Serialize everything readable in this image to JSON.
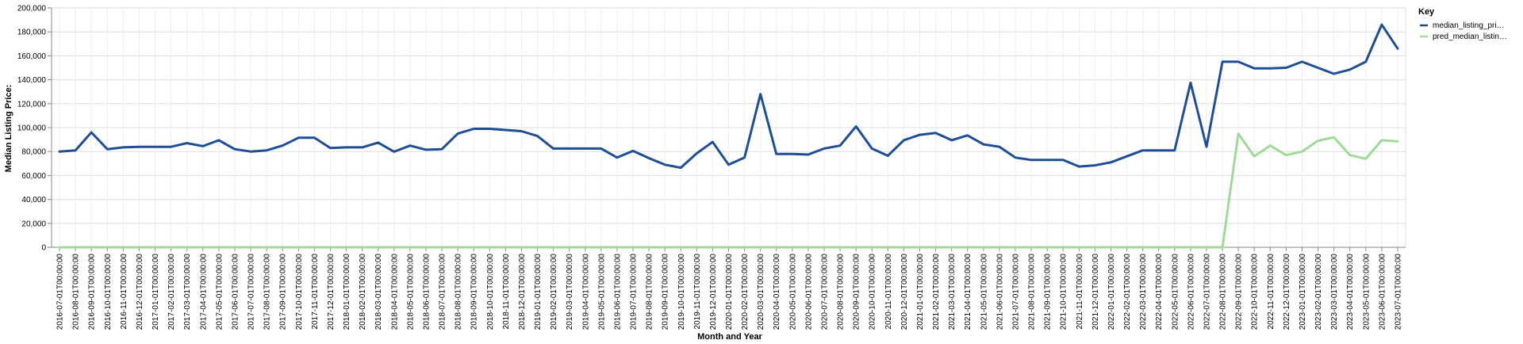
{
  "chart_data": {
    "type": "line",
    "xlabel": "Month and Year",
    "ylabel": "Median Listing Price:",
    "ylim": [
      0,
      200000
    ],
    "y_ticks": [
      "0",
      "20,000",
      "40,000",
      "60,000",
      "80,000",
      "100,000",
      "120,000",
      "140,000",
      "160,000",
      "180,000",
      "200,000"
    ],
    "grid": true,
    "legend": {
      "title": "Key",
      "placement": "top-right"
    },
    "x": [
      "2016-07-01T00:00:00",
      "2016-08-01T00:00:00",
      "2016-09-01T00:00:00",
      "2016-10-01T00:00:00",
      "2016-11-01T00:00:00",
      "2016-12-01T00:00:00",
      "2017-01-01T00:00:00",
      "2017-02-01T00:00:00",
      "2017-03-01T00:00:00",
      "2017-04-01T00:00:00",
      "2017-05-01T00:00:00",
      "2017-06-01T00:00:00",
      "2017-07-01T00:00:00",
      "2017-08-01T00:00:00",
      "2017-09-01T00:00:00",
      "2017-10-01T00:00:00",
      "2017-11-01T00:00:00",
      "2017-12-01T00:00:00",
      "2018-01-01T00:00:00",
      "2018-02-01T00:00:00",
      "2018-03-01T00:00:00",
      "2018-04-01T00:00:00",
      "2018-05-01T00:00:00",
      "2018-06-01T00:00:00",
      "2018-07-01T00:00:00",
      "2018-08-01T00:00:00",
      "2018-09-01T00:00:00",
      "2018-10-01T00:00:00",
      "2018-11-01T00:00:00",
      "2018-12-01T00:00:00",
      "2019-01-01T00:00:00",
      "2019-02-01T00:00:00",
      "2019-03-01T00:00:00",
      "2019-04-01T00:00:00",
      "2019-05-01T00:00:00",
      "2019-06-01T00:00:00",
      "2019-07-01T00:00:00",
      "2019-08-01T00:00:00",
      "2019-09-01T00:00:00",
      "2019-10-01T00:00:00",
      "2019-11-01T00:00:00",
      "2019-12-01T00:00:00",
      "2020-01-01T00:00:00",
      "2020-02-01T00:00:00",
      "2020-03-01T00:00:00",
      "2020-04-01T00:00:00",
      "2020-05-01T00:00:00",
      "2020-06-01T00:00:00",
      "2020-07-01T00:00:00",
      "2020-08-01T00:00:00",
      "2020-09-01T00:00:00",
      "2020-10-01T00:00:00",
      "2020-11-01T00:00:00",
      "2020-12-01T00:00:00",
      "2021-01-01T00:00:00",
      "2021-02-01T00:00:00",
      "2021-03-01T00:00:00",
      "2021-04-01T00:00:00",
      "2021-05-01T00:00:00",
      "2021-06-01T00:00:00",
      "2021-07-01T00:00:00",
      "2021-08-01T00:00:00",
      "2021-09-01T00:00:00",
      "2021-10-01T00:00:00",
      "2021-11-01T00:00:00",
      "2021-12-01T00:00:00",
      "2022-01-01T00:00:00",
      "2022-02-01T00:00:00",
      "2022-03-01T00:00:00",
      "2022-04-01T00:00:00",
      "2022-05-01T00:00:00",
      "2022-06-01T00:00:00",
      "2022-07-01T00:00:00",
      "2022-08-01T00:00:00",
      "2022-09-01T00:00:00",
      "2022-10-01T00:00:00",
      "2022-11-01T00:00:00",
      "2022-12-01T00:00:00",
      "2023-01-01T00:00:00",
      "2023-02-01T00:00:00",
      "2023-03-01T00:00:00",
      "2023-04-01T00:00:00",
      "2023-05-01T00:00:00",
      "2023-06-01T00:00:00",
      "2023-07-01T00:00:00"
    ],
    "series": [
      {
        "name": "median_listing_pri…",
        "color": "#1f4e96",
        "values": [
          80000,
          81000,
          96000,
          82000,
          83500,
          84000,
          84000,
          84000,
          87000,
          84500,
          89500,
          82000,
          80000,
          81000,
          85000,
          91500,
          91500,
          83000,
          83500,
          83500,
          87500,
          79900,
          85000,
          81500,
          82000,
          95000,
          99000,
          99000,
          98000,
          97000,
          93000,
          82500,
          82500,
          82500,
          82500,
          75000,
          80500,
          74500,
          69000,
          66500,
          78500,
          88000,
          69000,
          75000,
          128000,
          78000,
          78000,
          77500,
          82500,
          85000,
          101000,
          82500,
          76500,
          89500,
          94000,
          95500,
          89500,
          93500,
          86000,
          84000,
          75000,
          73000,
          73000,
          73000,
          67500,
          68500,
          71000,
          76000,
          81000,
          81000,
          81000,
          137500,
          84000,
          155000,
          155000,
          149500,
          149500,
          150000,
          155000,
          150000,
          145000,
          148500,
          155000,
          186000,
          166000
        ]
      },
      {
        "name": "pred_median_listin…",
        "color": "#a1d99b",
        "values": [
          0,
          0,
          0,
          0,
          0,
          0,
          0,
          0,
          0,
          0,
          0,
          0,
          0,
          0,
          0,
          0,
          0,
          0,
          0,
          0,
          0,
          0,
          0,
          0,
          0,
          0,
          0,
          0,
          0,
          0,
          0,
          0,
          0,
          0,
          0,
          0,
          0,
          0,
          0,
          0,
          0,
          0,
          0,
          0,
          0,
          0,
          0,
          0,
          0,
          0,
          0,
          0,
          0,
          0,
          0,
          0,
          0,
          0,
          0,
          0,
          0,
          0,
          0,
          0,
          0,
          0,
          0,
          0,
          0,
          0,
          0,
          0,
          0,
          0,
          95000,
          76000,
          85000,
          77000,
          80000,
          89000,
          92000,
          77000,
          74000,
          89500,
          88500
        ]
      }
    ]
  }
}
